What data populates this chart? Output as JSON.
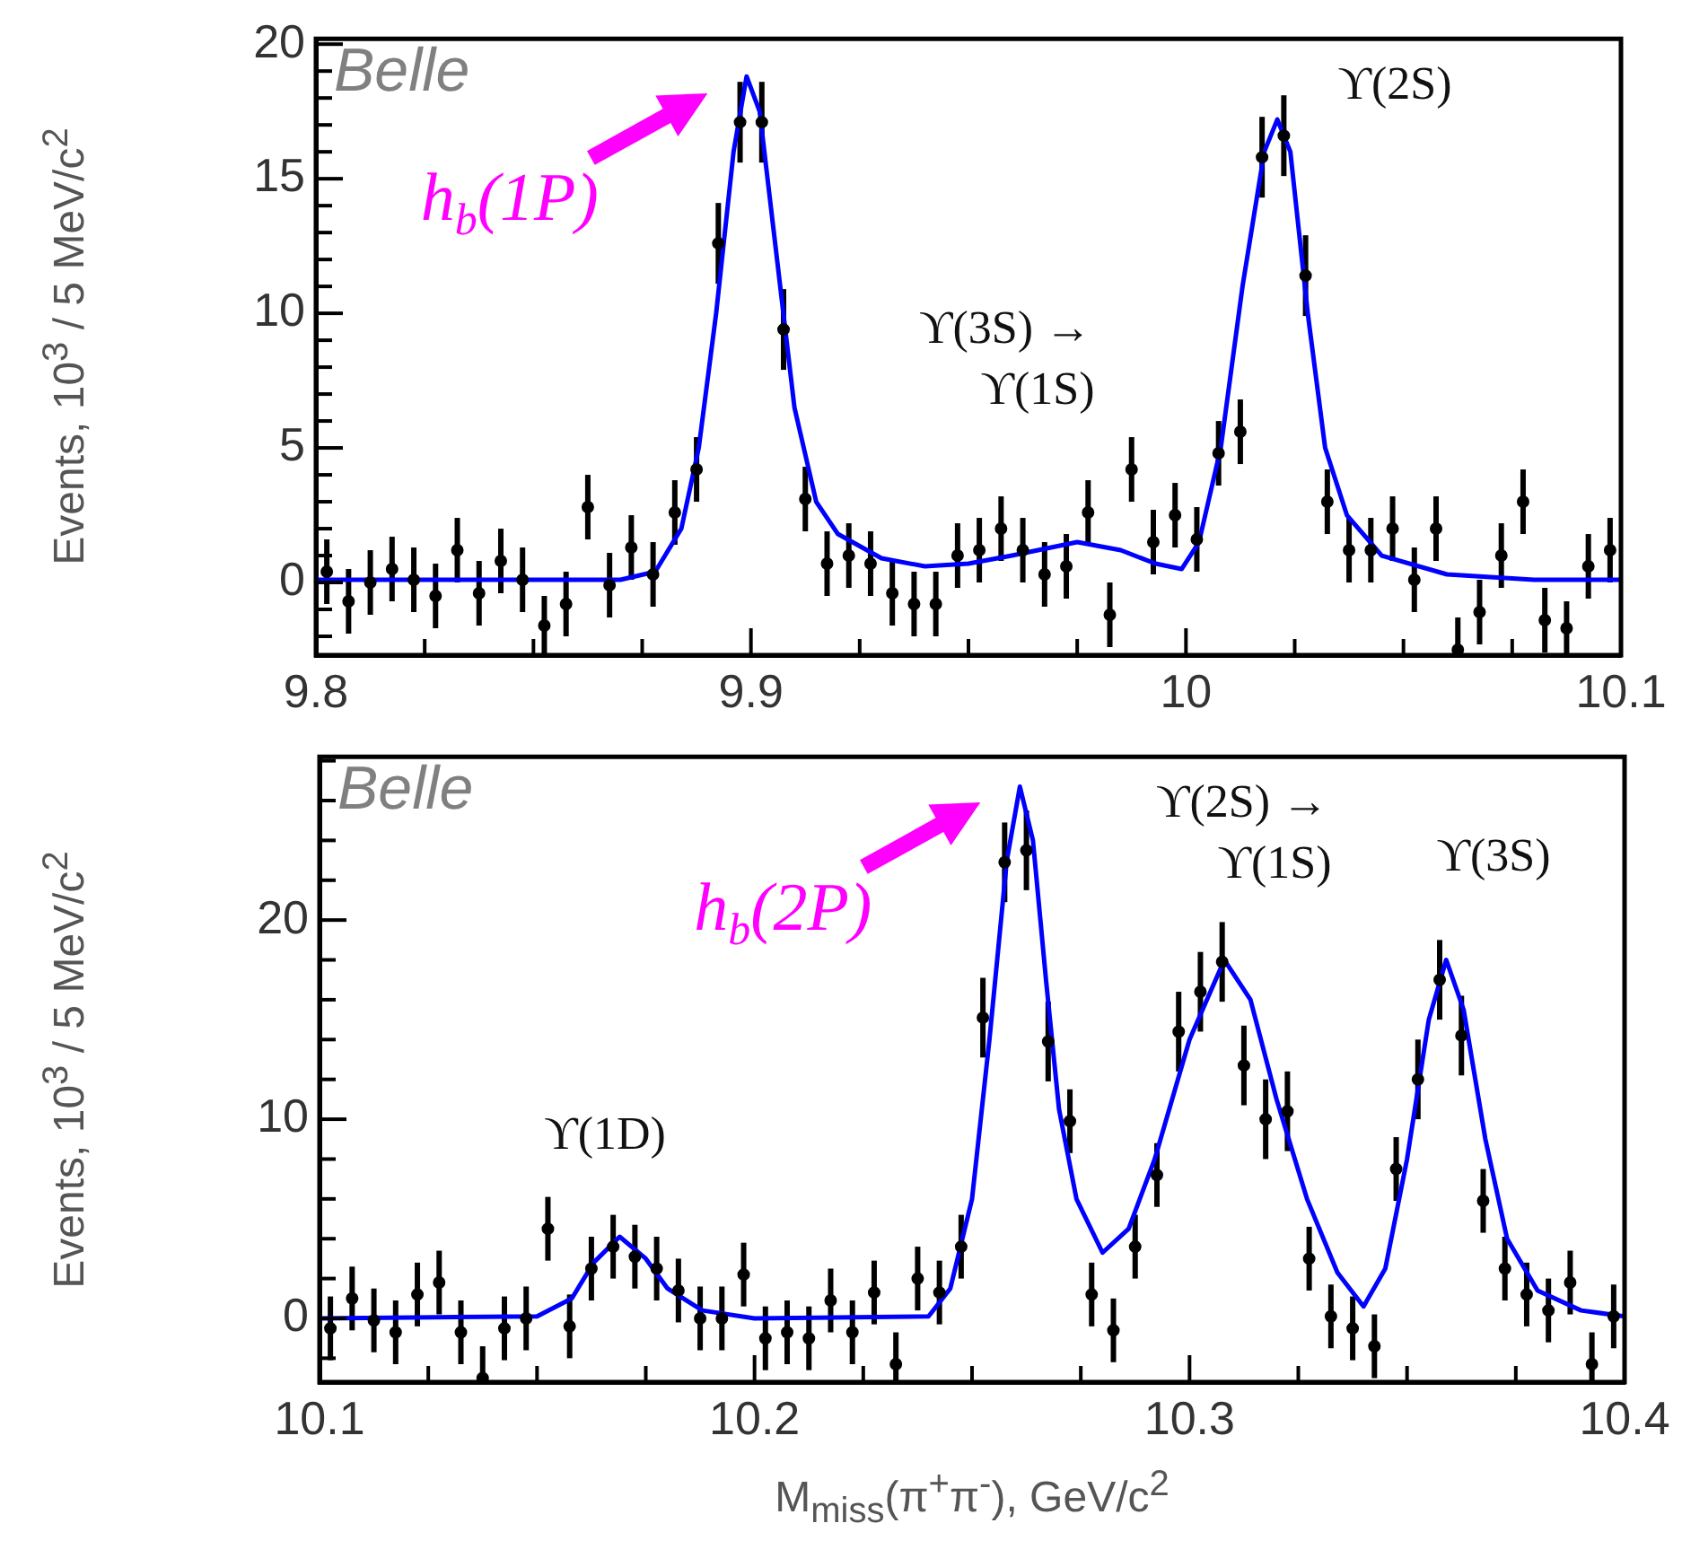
{
  "chart_data": [
    {
      "type": "scatter",
      "ylabel": "Events, 10$^{3}$ / 5 MeV/c$^{2}$",
      "annotations": [
        "Belle",
        "ϒ(3S) →\nϒ(1S)",
        "ϒ(2S)",
        {
          "text": "h$_{b}$(1P)",
          "x": 9.899,
          "y": 18.8
        }
      ],
      "xlim": [
        9.8,
        10.1
      ],
      "ylim": [
        -2.7,
        20.2
      ],
      "xticks": [
        9.8,
        {
          "value": 9.825,
          "label": null
        },
        {
          "value": 9.85,
          "label": null
        },
        {
          "value": 9.875,
          "label": null
        },
        9.9,
        {
          "value": 9.925,
          "label": null
        },
        {
          "value": 9.95,
          "label": null
        },
        {
          "value": 9.975,
          "label": null
        },
        10,
        {
          "value": 10.025,
          "label": null
        },
        {
          "value": 10.05,
          "label": null
        },
        {
          "value": 10.075,
          "label": null
        },
        10.1
      ],
      "yticks": [
        {
          "value": -2,
          "label": null
        },
        {
          "value": -1,
          "label": null
        },
        0,
        {
          "value": 1,
          "label": null
        },
        {
          "value": 2,
          "label": null
        },
        {
          "value": 3,
          "label": null
        },
        {
          "value": 4,
          "label": null
        },
        5,
        {
          "value": 6,
          "label": null
        },
        {
          "value": 7,
          "label": null
        },
        {
          "value": 8,
          "label": null
        },
        {
          "value": 9,
          "label": null
        },
        10,
        {
          "value": 11,
          "label": null
        },
        {
          "value": 12,
          "label": null
        },
        {
          "value": 13,
          "label": null
        },
        {
          "value": 14,
          "label": null
        },
        15,
        {
          "value": 16,
          "label": null
        },
        {
          "value": 17,
          "label": null
        },
        {
          "value": 18,
          "label": null
        },
        {
          "value": 19,
          "label": null
        },
        20
      ],
      "series": [
        {
          "type": "scatter",
          "color": "#000000",
          "marker": "circle",
          "x": [
            9.8025,
            9.8075,
            9.8125,
            9.8175,
            9.8225,
            9.8275,
            9.8325,
            9.8375,
            9.8425,
            9.8475,
            9.8525,
            9.8575,
            9.8625,
            9.8675,
            9.8725,
            9.8775,
            9.8825,
            9.8875,
            9.8925,
            9.8975,
            9.9025,
            9.9075,
            9.9125,
            9.9175,
            9.9225,
            9.9275,
            9.9325,
            9.9375,
            9.9425,
            9.9475,
            9.9525,
            9.9575,
            9.9625,
            9.9675,
            9.9725,
            9.9775,
            9.9825,
            9.9875,
            9.9925,
            9.9975,
            10.0025,
            10.0075,
            10.0125,
            10.0175,
            10.0225,
            10.0275,
            10.0325,
            10.0375,
            10.0425,
            10.0475,
            10.0525,
            10.0575,
            10.0625,
            10.0675,
            10.0725,
            10.0775,
            10.0825,
            10.0875,
            10.0925,
            10.0975
          ],
          "values": [
            0.4,
            -0.7,
            0,
            0.5,
            0.1,
            -0.5,
            1.2,
            -0.4,
            0.8,
            0.1,
            -1.6,
            -0.8,
            2.8,
            -0.1,
            1.3,
            0.3,
            2.6,
            4.2,
            12.6,
            17.1,
            17.1,
            9.4,
            3.1,
            0.7,
            1.0,
            0.7,
            -0.4,
            -0.8,
            -0.8,
            1.0,
            1.2,
            2.0,
            1.2,
            0.3,
            0.6,
            2.6,
            -1.2,
            4.2,
            1.5,
            2.5,
            1.6,
            4.8,
            5.6,
            15.8,
            16.6,
            11.4,
            3.0,
            1.2,
            1.2,
            2.0,
            0.1,
            2.0,
            -2.5,
            -1.1,
            1.0,
            3.0,
            -1.4,
            -1.7,
            0.6,
            1.2
          ],
          "errors": [
            1.2,
            1.2,
            1.2,
            1.2,
            1.2,
            1.2,
            1.2,
            1.2,
            1.2,
            1.2,
            1.1,
            1.2,
            1.2,
            1.2,
            1.2,
            1.2,
            1.2,
            1.2,
            1.5,
            1.5,
            1.5,
            1.5,
            1.2,
            1.2,
            1.2,
            1.2,
            1.2,
            1.2,
            1.2,
            1.2,
            1.2,
            1.2,
            1.2,
            1.2,
            1.2,
            1.2,
            1.2,
            1.2,
            1.2,
            1.2,
            1.2,
            1.2,
            1.2,
            1.5,
            1.5,
            1.5,
            1.2,
            1.2,
            1.2,
            1.2,
            1.2,
            1.2,
            [
              -2.7,
              -1.3
            ],
            1.2,
            1.2,
            1.2,
            1.2,
            1.0,
            1.2,
            1.2
          ]
        },
        {
          "type": "line",
          "color": "#0000ff",
          "line_style": "solid",
          "x": [
            9.8,
            9.87,
            9.878,
            9.884,
            9.888,
            9.892,
            9.896,
            9.899,
            9.902,
            9.906,
            9.91,
            9.915,
            9.92,
            9.93,
            9.94,
            9.95,
            9.96,
            9.975,
            9.985,
            9.993,
            9.999,
            10.003,
            10.008,
            10.013,
            10.018,
            10.021,
            10.024,
            10.028,
            10.032,
            10.037,
            10.045,
            10.06,
            10.08,
            10.1
          ],
          "values": [
            0.1,
            0.1,
            0.4,
            2,
            5,
            10,
            16,
            18.8,
            17.5,
            12,
            6.5,
            3,
            1.8,
            0.9,
            0.6,
            0.7,
            1.0,
            1.5,
            1.2,
            0.7,
            0.5,
            1.5,
            5,
            11,
            16,
            17.2,
            16,
            10,
            5,
            2.5,
            1.0,
            0.3,
            0.1,
            0.1
          ]
        }
      ]
    },
    {
      "type": "scatter",
      "xlabel": "M$_{miss}$(π$^{+}$π$^{-}$), GeV/c$^{2}$",
      "ylabel": "Events, 10$^{3}$ / 5 MeV/c$^{2}$",
      "annotations": [
        "Belle",
        "ϒ(1D)",
        "ϒ(2S) →\nϒ(1S)",
        "ϒ(3S)",
        {
          "text": "h$_{b}$(2P)",
          "x": 10.261,
          "y": 26.7
        }
      ],
      "xlim": [
        10.1,
        10.4
      ],
      "ylim": [
        -3.2,
        28.2
      ],
      "xticks": [
        10.1,
        {
          "value": 10.125,
          "label": null
        },
        {
          "value": 10.15,
          "label": null
        },
        {
          "value": 10.175,
          "label": null
        },
        10.2,
        {
          "value": 10.225,
          "label": null
        },
        {
          "value": 10.25,
          "label": null
        },
        {
          "value": 10.275,
          "label": null
        },
        10.3,
        {
          "value": 10.325,
          "label": null
        },
        {
          "value": 10.35,
          "label": null
        },
        {
          "value": 10.375,
          "label": null
        },
        10.4
      ],
      "yticks": [
        {
          "value": -2,
          "label": null
        },
        0,
        {
          "value": 2,
          "label": null
        },
        {
          "value": 4,
          "label": null
        },
        {
          "value": 6,
          "label": null
        },
        {
          "value": 8,
          "label": null
        },
        10,
        {
          "value": 12,
          "label": null
        },
        {
          "value": 14,
          "label": null
        },
        {
          "value": 16,
          "label": null
        },
        {
          "value": 18,
          "label": null
        },
        20,
        {
          "value": 22,
          "label": null
        },
        {
          "value": 24,
          "label": null
        },
        {
          "value": 26,
          "label": null
        },
        {
          "value": 28,
          "label": null
        }
      ],
      "series": [
        {
          "type": "scatter",
          "color": "#000000",
          "marker": "circle",
          "x": [
            10.1025,
            10.1075,
            10.1125,
            10.1175,
            10.1225,
            10.1275,
            10.1325,
            10.1375,
            10.1425,
            10.1475,
            10.1525,
            10.1575,
            10.1625,
            10.1675,
            10.1725,
            10.1775,
            10.1825,
            10.1875,
            10.1925,
            10.1975,
            10.2025,
            10.2075,
            10.2125,
            10.2175,
            10.2225,
            10.2275,
            10.2325,
            10.2375,
            10.2425,
            10.2475,
            10.2525,
            10.2575,
            10.2625,
            10.2675,
            10.2725,
            10.2775,
            10.2825,
            10.2875,
            10.2925,
            10.2975,
            10.3025,
            10.3075,
            10.3125,
            10.3175,
            10.3225,
            10.3275,
            10.3325,
            10.3375,
            10.3425,
            10.3475,
            10.3525,
            10.3575,
            10.3625,
            10.3675,
            10.3725,
            10.3775,
            10.3825,
            10.3875,
            10.3925,
            10.3975
          ],
          "values": [
            -0.5,
            1.0,
            -0.1,
            -0.7,
            1.2,
            1.8,
            -0.7,
            -3.0,
            -0.5,
            0.0,
            4.5,
            -0.4,
            2.5,
            3.6,
            3.1,
            2.5,
            1.4,
            0.0,
            0.0,
            2.2,
            -1.0,
            -0.7,
            -1.0,
            0.9,
            -0.7,
            1.3,
            -2.3,
            2.0,
            1.3,
            3.6,
            15.1,
            22.9,
            23.5,
            13.9,
            9.9,
            1.2,
            -0.6,
            3.6,
            7.2,
            14.4,
            16.4,
            17.9,
            12.7,
            10.0,
            10.4,
            3.0,
            0.1,
            -0.5,
            -1.4,
            7.5,
            12.0,
            17.0,
            14.2,
            5.9,
            2.5,
            1.2,
            0.4,
            1.8,
            -2.3,
            0.1
          ],
          "errors": [
            1.6,
            1.6,
            1.6,
            1.6,
            1.6,
            1.6,
            1.6,
            [
              -3.2,
              -1.4
            ],
            1.6,
            1.6,
            1.6,
            1.6,
            1.6,
            1.6,
            1.6,
            1.6,
            1.6,
            1.6,
            1.6,
            1.6,
            1.6,
            1.6,
            1.6,
            1.6,
            1.6,
            1.6,
            [
              -3.2,
              -0.7
            ],
            1.6,
            1.6,
            1.6,
            2.0,
            2.0,
            2.0,
            2.0,
            1.6,
            1.6,
            1.6,
            1.6,
            1.6,
            2.0,
            2.0,
            2.0,
            2.0,
            2.0,
            2.0,
            1.6,
            1.6,
            1.6,
            1.6,
            1.6,
            2.0,
            2.0,
            2.0,
            1.6,
            1.6,
            1.6,
            1.6,
            1.6,
            [
              -3.2,
              -0.7
            ],
            1.6
          ]
        },
        {
          "type": "line",
          "color": "#0000ff",
          "line_style": "solid",
          "x": [
            10.1,
            10.15,
            10.158,
            10.163,
            10.169,
            10.175,
            10.18,
            10.188,
            10.2,
            10.24,
            10.245,
            10.25,
            10.254,
            10.258,
            10.261,
            10.264,
            10.267,
            10.27,
            10.274,
            10.28,
            10.286,
            10.292,
            10.3,
            10.308,
            10.314,
            10.32,
            10.327,
            10.334,
            10.34,
            10.345,
            10.35,
            10.355,
            10.359,
            10.363,
            10.368,
            10.373,
            10.38,
            10.39,
            10.4
          ],
          "values": [
            0,
            0.1,
            1,
            2.8,
            4.1,
            3.0,
            1.5,
            0.4,
            0,
            0.1,
            1.5,
            6,
            14,
            23,
            26.7,
            24,
            17,
            10.5,
            6,
            3.3,
            4.5,
            8,
            14,
            18,
            16,
            11,
            6,
            2.3,
            0.6,
            2.5,
            8,
            15,
            18,
            15.5,
            9,
            4,
            1.4,
            0.4,
            0.1
          ]
        }
      ]
    }
  ]
}
